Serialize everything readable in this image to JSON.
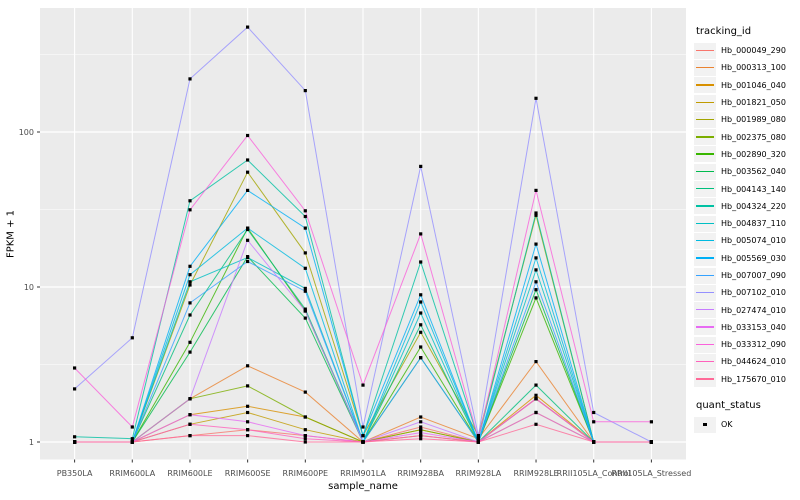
{
  "figure": {
    "x_axis": {
      "title": "sample_name"
    },
    "y_axis": {
      "title": "FPKM + 1"
    },
    "legend": {
      "tracking": {
        "title": "tracking_id"
      },
      "quant": {
        "title": "quant_status",
        "items": [
          {
            "label": "OK",
            "shape": "filled-square",
            "color": "#000000"
          }
        ]
      }
    },
    "style": {
      "panel_bg": "#EBEBEB",
      "grid_color": "#FFFFFF",
      "key_bg": "#F2F2F2",
      "tick_text_color": "#4D4D4D",
      "axis_tick_color": "#333333",
      "point_color": "#000000"
    }
  },
  "chart_data": {
    "type": "line",
    "title": "",
    "xlabel": "sample_name",
    "ylabel": "FPKM + 1",
    "x_scale": "discrete",
    "y_scale": "log10",
    "y_ticks": [
      1,
      10,
      100
    ],
    "ylim": [
      0.77,
      630
    ],
    "grid": true,
    "legend_position": "right",
    "points": {
      "shape": "filled-square",
      "color": "#000000",
      "status_label": "OK"
    },
    "categories": [
      "PB350LA",
      "RRIM600LA",
      "RRIM600LE",
      "RRIM600SE",
      "RRIM600PE",
      "RRIM901LA",
      "RRIM928BA",
      "RRIM928LA",
      "RRIM928LE",
      "RRII105LA_Control",
      "RRII105LA_Stressed"
    ],
    "series": [
      {
        "name": "Hb_000049_290",
        "color": "#F8766D",
        "values": [
          1.0,
          1.0,
          1.1,
          1.2,
          1.1,
          1.0,
          1.25,
          1.0,
          1.9,
          1.0,
          1.0
        ]
      },
      {
        "name": "Hb_000313_100",
        "color": "#EA8331",
        "values": [
          1.0,
          1.0,
          1.9,
          3.1,
          2.1,
          1.0,
          1.45,
          1.05,
          3.3,
          1.0,
          1.0
        ]
      },
      {
        "name": "Hb_001046_040",
        "color": "#D89000",
        "values": [
          1.0,
          1.0,
          1.5,
          1.7,
          1.45,
          1.0,
          1.2,
          1.0,
          2.0,
          1.0,
          1.0
        ]
      },
      {
        "name": "Hb_001821_050",
        "color": "#C09B00",
        "values": [
          1.0,
          1.0,
          1.3,
          1.55,
          1.2,
          1.0,
          1.1,
          1.0,
          1.55,
          1.0,
          1.0
        ]
      },
      {
        "name": "Hb_001989_080",
        "color": "#A3A500",
        "values": [
          1.0,
          1.0,
          10.3,
          55.0,
          16.6,
          1.1,
          5.1,
          1.1,
          29.0,
          1.0,
          1.0
        ]
      },
      {
        "name": "Hb_002375_080",
        "color": "#7CAE00",
        "values": [
          1.0,
          1.0,
          1.9,
          2.3,
          1.45,
          1.0,
          1.2,
          1.0,
          1.9,
          1.0,
          1.0
        ]
      },
      {
        "name": "Hb_002890_320",
        "color": "#39B600",
        "values": [
          1.0,
          1.0,
          4.4,
          24.0,
          7.0,
          1.0,
          4.1,
          1.0,
          8.5,
          1.0,
          1.0
        ]
      },
      {
        "name": "Hb_003562_040",
        "color": "#00BB4E",
        "values": [
          1.0,
          1.0,
          3.8,
          15.7,
          6.3,
          1.0,
          3.5,
          1.0,
          9.6,
          1.0,
          1.0
        ]
      },
      {
        "name": "Hb_004143_140",
        "color": "#00BF7D",
        "values": [
          1.0,
          1.0,
          6.6,
          23.5,
          7.2,
          1.0,
          5.7,
          1.0,
          2.33,
          1.0,
          1.0
        ]
      },
      {
        "name": "Hb_004324_220",
        "color": "#00C1A3",
        "values": [
          1.08,
          1.05,
          36.0,
          66.0,
          28.5,
          1.1,
          14.5,
          1.05,
          30.0,
          1.0,
          1.0
        ]
      },
      {
        "name": "Hb_004837_110",
        "color": "#00BFC4",
        "values": [
          1.0,
          1.0,
          10.8,
          15.5,
          9.8,
          1.0,
          6.8,
          1.0,
          12.9,
          1.0,
          1.0
        ]
      },
      {
        "name": "Hb_005074_010",
        "color": "#00BAE0",
        "values": [
          1.0,
          1.0,
          12.0,
          24.0,
          13.2,
          1.0,
          8.0,
          1.0,
          15.4,
          1.0,
          1.0
        ]
      },
      {
        "name": "Hb_005569_030",
        "color": "#00B0F6",
        "values": [
          1.0,
          1.0,
          13.6,
          42.0,
          24.0,
          1.1,
          8.9,
          1.0,
          18.9,
          1.0,
          1.0
        ]
      },
      {
        "name": "Hb_007007_090",
        "color": "#35A2FF",
        "values": [
          1.0,
          1.0,
          7.9,
          14.6,
          9.4,
          1.0,
          3.5,
          1.0,
          10.8,
          1.0,
          1.0
        ]
      },
      {
        "name": "Hb_007102_010",
        "color": "#9590FF",
        "values": [
          2.2,
          4.7,
          220.0,
          475.0,
          185.0,
          1.25,
          60.0,
          1.1,
          165.0,
          1.55,
          1.0
        ]
      },
      {
        "name": "Hb_027474_010",
        "color": "#C77CFF",
        "values": [
          1.0,
          1.0,
          1.9,
          20.0,
          7.0,
          1.0,
          1.35,
          1.0,
          1.9,
          1.0,
          1.0
        ]
      },
      {
        "name": "Hb_033153_040",
        "color": "#E76BF3",
        "values": [
          1.0,
          1.0,
          1.5,
          1.35,
          1.1,
          1.0,
          1.15,
          1.0,
          1.55,
          1.0,
          1.0
        ]
      },
      {
        "name": "Hb_033312_090",
        "color": "#FA62DB",
        "values": [
          3.0,
          1.25,
          31.5,
          95.0,
          31.0,
          2.33,
          22.0,
          1.05,
          42.0,
          1.35,
          1.35
        ]
      },
      {
        "name": "Hb_044624_010",
        "color": "#FF62BC",
        "values": [
          1.0,
          1.0,
          1.3,
          1.2,
          1.05,
          1.0,
          1.1,
          1.0,
          1.9,
          1.0,
          1.0
        ]
      },
      {
        "name": "Hb_175670_010",
        "color": "#FF6A98",
        "values": [
          1.0,
          1.0,
          1.1,
          1.1,
          1.0,
          1.0,
          1.05,
          1.0,
          1.3,
          1.0,
          1.0
        ]
      }
    ]
  }
}
